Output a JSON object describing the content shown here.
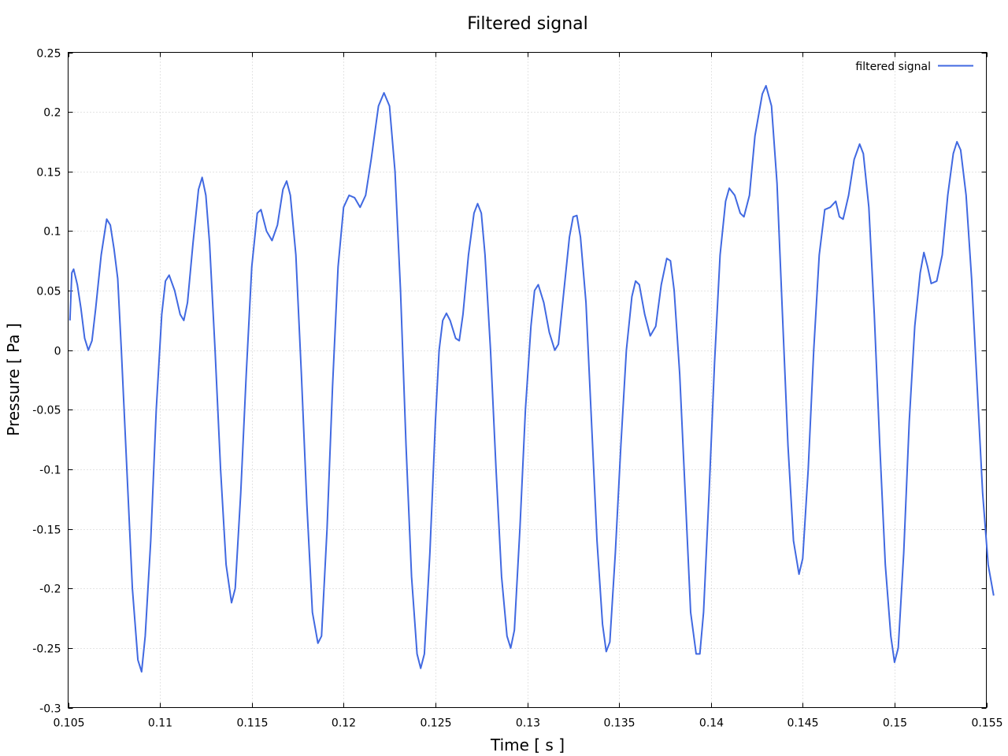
{
  "chart_data": {
    "type": "line",
    "title": "Filtered signal",
    "xlabel": "Time [ s ]",
    "ylabel": "Pressure [ Pa ]",
    "xlim": [
      0.105,
      0.155
    ],
    "ylim": [
      -0.3,
      0.25
    ],
    "xticks": [
      0.105,
      0.11,
      0.115,
      0.12,
      0.125,
      0.13,
      0.135,
      0.14,
      0.145,
      0.15,
      0.155
    ],
    "xtick_labels": [
      "0.105",
      "0.11",
      "0.115",
      "0.12",
      "0.125",
      "0.13",
      "0.135",
      "0.14",
      "0.145",
      "0.15",
      "0.155"
    ],
    "yticks": [
      0.25,
      0.2,
      0.15,
      0.1,
      0.05,
      0,
      -0.05,
      -0.1,
      -0.15,
      -0.2,
      -0.25,
      -0.3
    ],
    "ytick_labels": [
      "0.25",
      "0.2",
      "0.15",
      "0.1",
      "0.05",
      "0",
      "-0.05",
      "-0.1",
      "-0.15",
      "-0.2",
      "-0.25",
      "-0.3"
    ],
    "grid": true,
    "legend_position": "top-right",
    "series": [
      {
        "name": "filtered signal",
        "color": "#4169e1",
        "points": [
          [
            0.1051,
            0.025
          ],
          [
            0.1052,
            0.065
          ],
          [
            0.1053,
            0.068
          ],
          [
            0.1055,
            0.055
          ],
          [
            0.1057,
            0.035
          ],
          [
            0.1059,
            0.01
          ],
          [
            0.1061,
            0.0
          ],
          [
            0.1063,
            0.008
          ],
          [
            0.1065,
            0.035
          ],
          [
            0.1068,
            0.08
          ],
          [
            0.1071,
            0.11
          ],
          [
            0.1073,
            0.105
          ],
          [
            0.1075,
            0.085
          ],
          [
            0.1077,
            0.06
          ],
          [
            0.1079,
            0.0
          ],
          [
            0.1082,
            -0.1
          ],
          [
            0.1085,
            -0.2
          ],
          [
            0.1088,
            -0.26
          ],
          [
            0.109,
            -0.27
          ],
          [
            0.1092,
            -0.24
          ],
          [
            0.1095,
            -0.16
          ],
          [
            0.1098,
            -0.05
          ],
          [
            0.1101,
            0.03
          ],
          [
            0.1103,
            0.058
          ],
          [
            0.1105,
            0.063
          ],
          [
            0.1108,
            0.05
          ],
          [
            0.1111,
            0.03
          ],
          [
            0.1113,
            0.025
          ],
          [
            0.1115,
            0.04
          ],
          [
            0.1118,
            0.09
          ],
          [
            0.1121,
            0.135
          ],
          [
            0.1123,
            0.145
          ],
          [
            0.1125,
            0.13
          ],
          [
            0.1127,
            0.09
          ],
          [
            0.113,
            0.0
          ],
          [
            0.1133,
            -0.1
          ],
          [
            0.1136,
            -0.18
          ],
          [
            0.1139,
            -0.212
          ],
          [
            0.1141,
            -0.2
          ],
          [
            0.1144,
            -0.12
          ],
          [
            0.1147,
            -0.02
          ],
          [
            0.115,
            0.07
          ],
          [
            0.1153,
            0.115
          ],
          [
            0.1155,
            0.118
          ],
          [
            0.1158,
            0.1
          ],
          [
            0.1161,
            0.092
          ],
          [
            0.1164,
            0.105
          ],
          [
            0.1167,
            0.135
          ],
          [
            0.1169,
            0.142
          ],
          [
            0.1171,
            0.13
          ],
          [
            0.1174,
            0.08
          ],
          [
            0.1177,
            -0.02
          ],
          [
            0.118,
            -0.13
          ],
          [
            0.1183,
            -0.22
          ],
          [
            0.1186,
            -0.246
          ],
          [
            0.1188,
            -0.24
          ],
          [
            0.1191,
            -0.15
          ],
          [
            0.1194,
            -0.03
          ],
          [
            0.1197,
            0.07
          ],
          [
            0.12,
            0.12
          ],
          [
            0.1203,
            0.13
          ],
          [
            0.1206,
            0.128
          ],
          [
            0.1209,
            0.12
          ],
          [
            0.1212,
            0.13
          ],
          [
            0.1215,
            0.16
          ],
          [
            0.1219,
            0.205
          ],
          [
            0.1222,
            0.216
          ],
          [
            0.1225,
            0.205
          ],
          [
            0.1228,
            0.15
          ],
          [
            0.1231,
            0.05
          ],
          [
            0.1234,
            -0.08
          ],
          [
            0.1237,
            -0.19
          ],
          [
            0.124,
            -0.255
          ],
          [
            0.1242,
            -0.267
          ],
          [
            0.1244,
            -0.255
          ],
          [
            0.1247,
            -0.17
          ],
          [
            0.125,
            -0.06
          ],
          [
            0.1252,
            0.0
          ],
          [
            0.1254,
            0.025
          ],
          [
            0.1256,
            0.031
          ],
          [
            0.1258,
            0.025
          ],
          [
            0.1261,
            0.01
          ],
          [
            0.1263,
            0.008
          ],
          [
            0.1265,
            0.03
          ],
          [
            0.1268,
            0.08
          ],
          [
            0.1271,
            0.115
          ],
          [
            0.1273,
            0.123
          ],
          [
            0.1275,
            0.115
          ],
          [
            0.1277,
            0.08
          ],
          [
            0.128,
            0.0
          ],
          [
            0.1283,
            -0.1
          ],
          [
            0.1286,
            -0.19
          ],
          [
            0.1289,
            -0.24
          ],
          [
            0.1291,
            -0.25
          ],
          [
            0.1293,
            -0.235
          ],
          [
            0.1296,
            -0.15
          ],
          [
            0.1299,
            -0.05
          ],
          [
            0.1302,
            0.02
          ],
          [
            0.1304,
            0.05
          ],
          [
            0.1306,
            0.055
          ],
          [
            0.1309,
            0.04
          ],
          [
            0.1312,
            0.015
          ],
          [
            0.1315,
            0.0
          ],
          [
            0.1317,
            0.005
          ],
          [
            0.132,
            0.05
          ],
          [
            0.1323,
            0.095
          ],
          [
            0.1325,
            0.112
          ],
          [
            0.1327,
            0.113
          ],
          [
            0.1329,
            0.095
          ],
          [
            0.1332,
            0.04
          ],
          [
            0.1335,
            -0.06
          ],
          [
            0.1338,
            -0.16
          ],
          [
            0.1341,
            -0.23
          ],
          [
            0.1343,
            -0.253
          ],
          [
            0.1345,
            -0.245
          ],
          [
            0.1348,
            -0.17
          ],
          [
            0.1351,
            -0.08
          ],
          [
            0.1354,
            0.0
          ],
          [
            0.1357,
            0.045
          ],
          [
            0.1359,
            0.058
          ],
          [
            0.1361,
            0.055
          ],
          [
            0.1364,
            0.03
          ],
          [
            0.1367,
            0.012
          ],
          [
            0.137,
            0.02
          ],
          [
            0.1373,
            0.055
          ],
          [
            0.1376,
            0.077
          ],
          [
            0.1378,
            0.075
          ],
          [
            0.138,
            0.05
          ],
          [
            0.1383,
            -0.02
          ],
          [
            0.1386,
            -0.12
          ],
          [
            0.1389,
            -0.22
          ],
          [
            0.1392,
            -0.255
          ],
          [
            0.1394,
            -0.255
          ],
          [
            0.1396,
            -0.22
          ],
          [
            0.1399,
            -0.12
          ],
          [
            0.1402,
            -0.01
          ],
          [
            0.1405,
            0.08
          ],
          [
            0.1408,
            0.125
          ],
          [
            0.141,
            0.136
          ],
          [
            0.1413,
            0.13
          ],
          [
            0.1416,
            0.115
          ],
          [
            0.1418,
            0.112
          ],
          [
            0.1421,
            0.13
          ],
          [
            0.1424,
            0.18
          ],
          [
            0.1428,
            0.215
          ],
          [
            0.143,
            0.222
          ],
          [
            0.1433,
            0.205
          ],
          [
            0.1436,
            0.14
          ],
          [
            0.1439,
            0.03
          ],
          [
            0.1442,
            -0.08
          ],
          [
            0.1445,
            -0.16
          ],
          [
            0.1448,
            -0.188
          ],
          [
            0.145,
            -0.175
          ],
          [
            0.1453,
            -0.1
          ],
          [
            0.1456,
            0.0
          ],
          [
            0.1459,
            0.08
          ],
          [
            0.1462,
            0.118
          ],
          [
            0.1465,
            0.12
          ],
          [
            0.1468,
            0.125
          ],
          [
            0.147,
            0.112
          ],
          [
            0.1472,
            0.11
          ],
          [
            0.1475,
            0.13
          ],
          [
            0.1478,
            0.16
          ],
          [
            0.1481,
            0.173
          ],
          [
            0.1483,
            0.165
          ],
          [
            0.1486,
            0.12
          ],
          [
            0.1489,
            0.03
          ],
          [
            0.1492,
            -0.08
          ],
          [
            0.1495,
            -0.18
          ],
          [
            0.1498,
            -0.24
          ],
          [
            0.15,
            -0.262
          ],
          [
            0.1502,
            -0.25
          ],
          [
            0.1505,
            -0.17
          ],
          [
            0.1508,
            -0.06
          ],
          [
            0.1511,
            0.02
          ],
          [
            0.1514,
            0.065
          ],
          [
            0.1516,
            0.082
          ],
          [
            0.1518,
            0.07
          ],
          [
            0.152,
            0.056
          ],
          [
            0.1523,
            0.058
          ],
          [
            0.1526,
            0.08
          ],
          [
            0.1529,
            0.13
          ],
          [
            0.1532,
            0.165
          ],
          [
            0.1534,
            0.175
          ],
          [
            0.1536,
            0.168
          ],
          [
            0.1539,
            0.13
          ],
          [
            0.1542,
            0.06
          ],
          [
            0.1545,
            -0.03
          ],
          [
            0.1548,
            -0.12
          ],
          [
            0.1551,
            -0.18
          ],
          [
            0.1554,
            -0.206
          ]
        ]
      }
    ]
  }
}
